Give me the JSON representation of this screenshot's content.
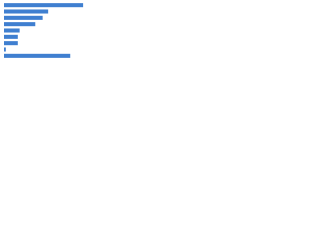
{
  "chart_data": {
    "type": "bar",
    "orientation": "horizontal",
    "categories": [
      null,
      null,
      null,
      null,
      null,
      null,
      null,
      null,
      null
    ],
    "values": [
      86,
      48,
      42,
      34,
      17,
      15,
      15,
      2,
      72
    ],
    "color": "#3f7fd0",
    "xlim": [
      0,
      100
    ]
  }
}
